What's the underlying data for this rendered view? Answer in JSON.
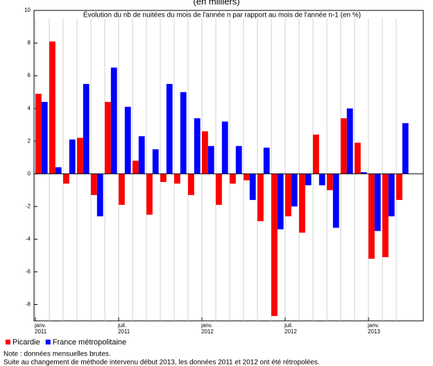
{
  "chart_data": {
    "type": "bar",
    "subtitle": "(en milliers)",
    "title": "Évolution du nb de nuitées du mois de l'année n par rapport au mois de l'année n-1 (en %)",
    "categories": [
      "janv. 2011",
      null,
      null,
      null,
      null,
      null,
      "juil. 2011",
      null,
      null,
      null,
      null,
      null,
      "janv. 2012",
      null,
      null,
      null,
      null,
      null,
      "juil. 2012",
      null,
      null,
      null,
      null,
      null,
      "janv. 2013",
      null,
      null
    ],
    "series": [
      {
        "name": "Picardie",
        "color": "#ff0000",
        "values": [
          4.9,
          8.1,
          -0.6,
          2.2,
          -1.3,
          4.4,
          -1.9,
          0.8,
          -2.5,
          -0.5,
          -0.6,
          -1.3,
          2.6,
          -1.9,
          -0.6,
          -0.4,
          -2.9,
          -8.7,
          -2.6,
          -3.6,
          2.4,
          -1.0,
          3.4,
          1.9,
          -5.2,
          -5.1,
          -1.6
        ]
      },
      {
        "name": "France métropolitaine",
        "color": "#0000ff",
        "values": [
          4.4,
          0.4,
          2.1,
          5.5,
          -2.6,
          6.5,
          4.1,
          2.3,
          1.5,
          5.5,
          5.0,
          3.4,
          1.7,
          3.2,
          1.7,
          -1.6,
          1.6,
          -3.4,
          -2.0,
          -0.7,
          -0.7,
          -3.3,
          4.0,
          0.1,
          -3.5,
          -2.6,
          3.1
        ]
      }
    ],
    "ylim": [
      -9,
      10
    ],
    "yticks": [
      -8,
      -6,
      -4,
      -2,
      0,
      2,
      4,
      6,
      8,
      10
    ],
    "grid": true,
    "legend": "bottom-left",
    "notes": [
      "Note : données mensuelles brutes.",
      "Suite au changement de méthode intervenu début 2013, les données 2011 et 2012 ont été rétropolées."
    ]
  }
}
